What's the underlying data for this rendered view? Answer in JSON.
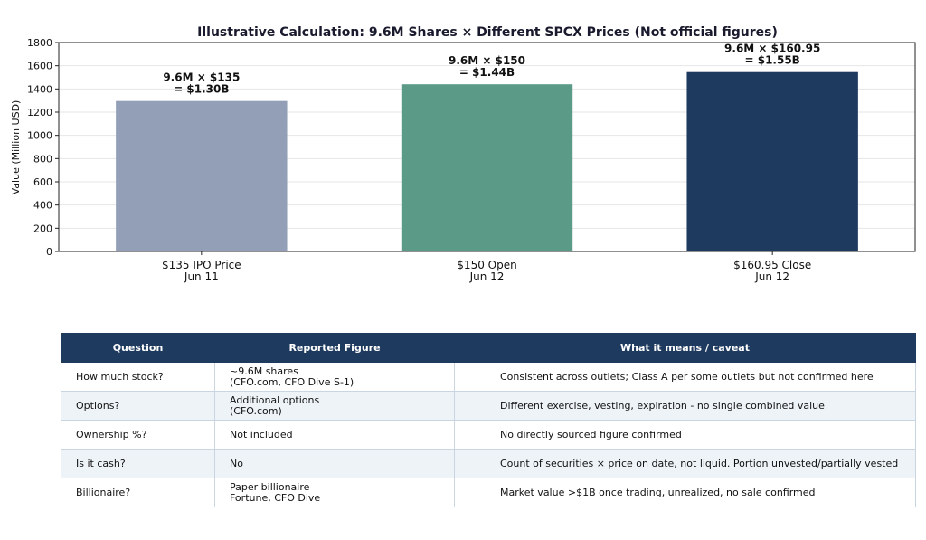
{
  "chart_data": {
    "type": "bar",
    "title": "Illustrative Calculation: 9.6M Shares × Different SPCX Prices (Not official figures)",
    "ylabel": "Value (Million USD)",
    "xlabel": "",
    "ylim": [
      0,
      1800
    ],
    "yticks": [
      0,
      200,
      400,
      600,
      800,
      1000,
      1200,
      1400,
      1600,
      1800
    ],
    "grid": true,
    "categories": [
      [
        "$135 IPO Price",
        "Jun 11"
      ],
      [
        "$150 Open",
        "Jun 12"
      ],
      [
        "$160.95 Close",
        "Jun 12"
      ]
    ],
    "values": [
      1296,
      1440,
      1545.12
    ],
    "colors": [
      "#929fb7",
      "#5a9a87",
      "#1f3a5f"
    ],
    "data_labels": [
      [
        "9.6M × $135",
        "= $1.30B"
      ],
      [
        "9.6M × $150",
        "= $1.44B"
      ],
      [
        "9.6M × $160.95",
        "= $1.55B"
      ]
    ]
  },
  "table": {
    "headers": [
      "Question",
      "Reported Figure",
      "What it means / caveat"
    ],
    "rows": [
      {
        "q": "How much stock?",
        "fig1": "~9.6M shares",
        "fig2": "(CFO.com, CFO Dive S-1)",
        "caveat": "Consistent across outlets; Class A per some outlets but not confirmed here"
      },
      {
        "q": "Options?",
        "fig1": "Additional options",
        "fig2": "(CFO.com)",
        "caveat": "Different exercise, vesting, expiration - no single combined value"
      },
      {
        "q": "Ownership %?",
        "fig1": "Not included",
        "fig2": "",
        "caveat": "No directly sourced figure confirmed"
      },
      {
        "q": "Is it cash?",
        "fig1": "No",
        "fig2": "",
        "caveat": "Count of securities × price on date, not liquid. Portion unvested/partially vested"
      },
      {
        "q": "Billionaire?",
        "fig1": "Paper billionaire",
        "fig2": "Fortune, CFO Dive",
        "caveat": "Market value >$1B once trading, unrealized, no sale confirmed"
      }
    ]
  }
}
